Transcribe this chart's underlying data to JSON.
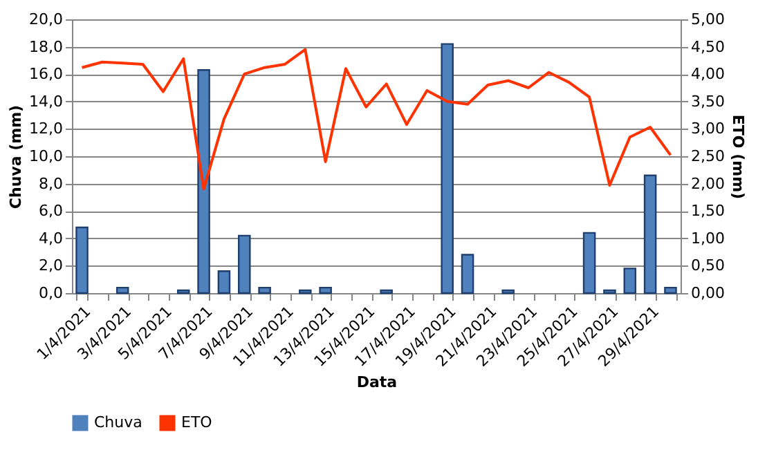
{
  "chart_data": {
    "type": "bar",
    "xlabel": "Data",
    "ylabel": "Chuva (mm)",
    "y2label": "ETO (mm)",
    "categories": [
      "1/4/2021",
      null,
      "3/4/2021",
      null,
      "5/4/2021",
      null,
      "7/4/2021",
      null,
      "9/4/2021",
      null,
      "11/4/2021",
      null,
      "13/4/2021",
      null,
      "15/4/2021",
      null,
      "17/4/2021",
      null,
      "19/4/2021",
      null,
      "21/4/2021",
      null,
      "23/4/2021",
      null,
      "25/4/2021",
      null,
      "27/4/2021",
      null,
      "29/4/2021",
      null
    ],
    "series": [
      {
        "name": "Chuva",
        "color": "#4f81bd",
        "values": [
          4.8,
          0,
          0.4,
          0,
          0,
          0.2,
          16.3,
          1.6,
          4.2,
          0.4,
          0,
          0.2,
          0.4,
          0,
          0,
          0.2,
          0,
          0,
          18.2,
          2.8,
          0,
          0.2,
          0,
          0,
          0,
          4.4,
          0.2,
          1.8,
          8.6,
          0.4
        ]
      },
      {
        "name": "ETO",
        "type": "line",
        "axis": "y2",
        "color": "#ff3300",
        "values": [
          4.12,
          4.22,
          4.2,
          4.18,
          3.68,
          4.28,
          1.9,
          3.18,
          4.0,
          4.12,
          4.18,
          4.45,
          2.4,
          4.1,
          3.4,
          3.82,
          3.08,
          3.7,
          3.5,
          3.45,
          3.8,
          3.88,
          3.75,
          4.03,
          3.85,
          3.58,
          1.97,
          2.85,
          3.03,
          2.52
        ]
      }
    ],
    "ylim": [
      0,
      20
    ],
    "yticks": [
      {
        "value": 0,
        "label": "0,0"
      },
      {
        "value": 2,
        "label": "2,0"
      },
      {
        "value": 4,
        "label": "4,0"
      },
      {
        "value": 6,
        "label": "6,0"
      },
      {
        "value": 8,
        "label": "8,0"
      },
      {
        "value": 10,
        "label": "10,0"
      },
      {
        "value": 12,
        "label": "12,0"
      },
      {
        "value": 14,
        "label": "14,0"
      },
      {
        "value": 16,
        "label": "16,0"
      },
      {
        "value": 18,
        "label": "18,0"
      },
      {
        "value": 20,
        "label": "20,0"
      }
    ],
    "y2lim": [
      0,
      5
    ],
    "y2ticks": [
      {
        "value": 0,
        "label": "0,00"
      },
      {
        "value": 0.5,
        "label": "0,50"
      },
      {
        "value": 1,
        "label": "1,00"
      },
      {
        "value": 1.5,
        "label": "1,50"
      },
      {
        "value": 2,
        "label": "2,00"
      },
      {
        "value": 2.5,
        "label": "2,50"
      },
      {
        "value": 3,
        "label": "3,00"
      },
      {
        "value": 3.5,
        "label": "3,50"
      },
      {
        "value": 4,
        "label": "4,00"
      },
      {
        "value": 4.5,
        "label": "4,50"
      },
      {
        "value": 5,
        "label": "5,00"
      }
    ],
    "grid": "y",
    "legend": "bottom",
    "marker": "none",
    "line_style": "solid"
  }
}
